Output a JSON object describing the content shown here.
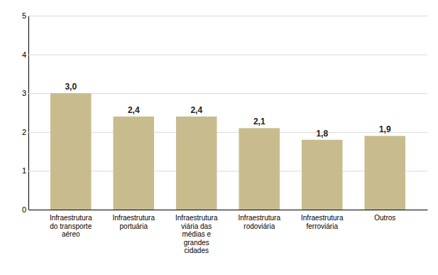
{
  "chart_data": {
    "type": "bar",
    "categories": [
      "Infraestrutura\ndo transporte\naéreo",
      "Infraestrutura\nportuária",
      "Infraestrutura\nviária das\nmédias e\ngrandes\ncidades",
      "Infraestrutura\nrodoviária",
      "Infraestrutura\nferroviária",
      "Outros"
    ],
    "values": [
      3.0,
      2.4,
      2.4,
      2.1,
      1.8,
      1.9
    ],
    "value_labels": [
      "3,0",
      "2,4",
      "2,4",
      "2,1",
      "1,8",
      "1,9"
    ],
    "data_labels": true,
    "color": "#C8BC8E",
    "ylim": [
      0,
      5
    ],
    "yticks": [
      0,
      1,
      2,
      3,
      4,
      5
    ],
    "grid": true
  }
}
